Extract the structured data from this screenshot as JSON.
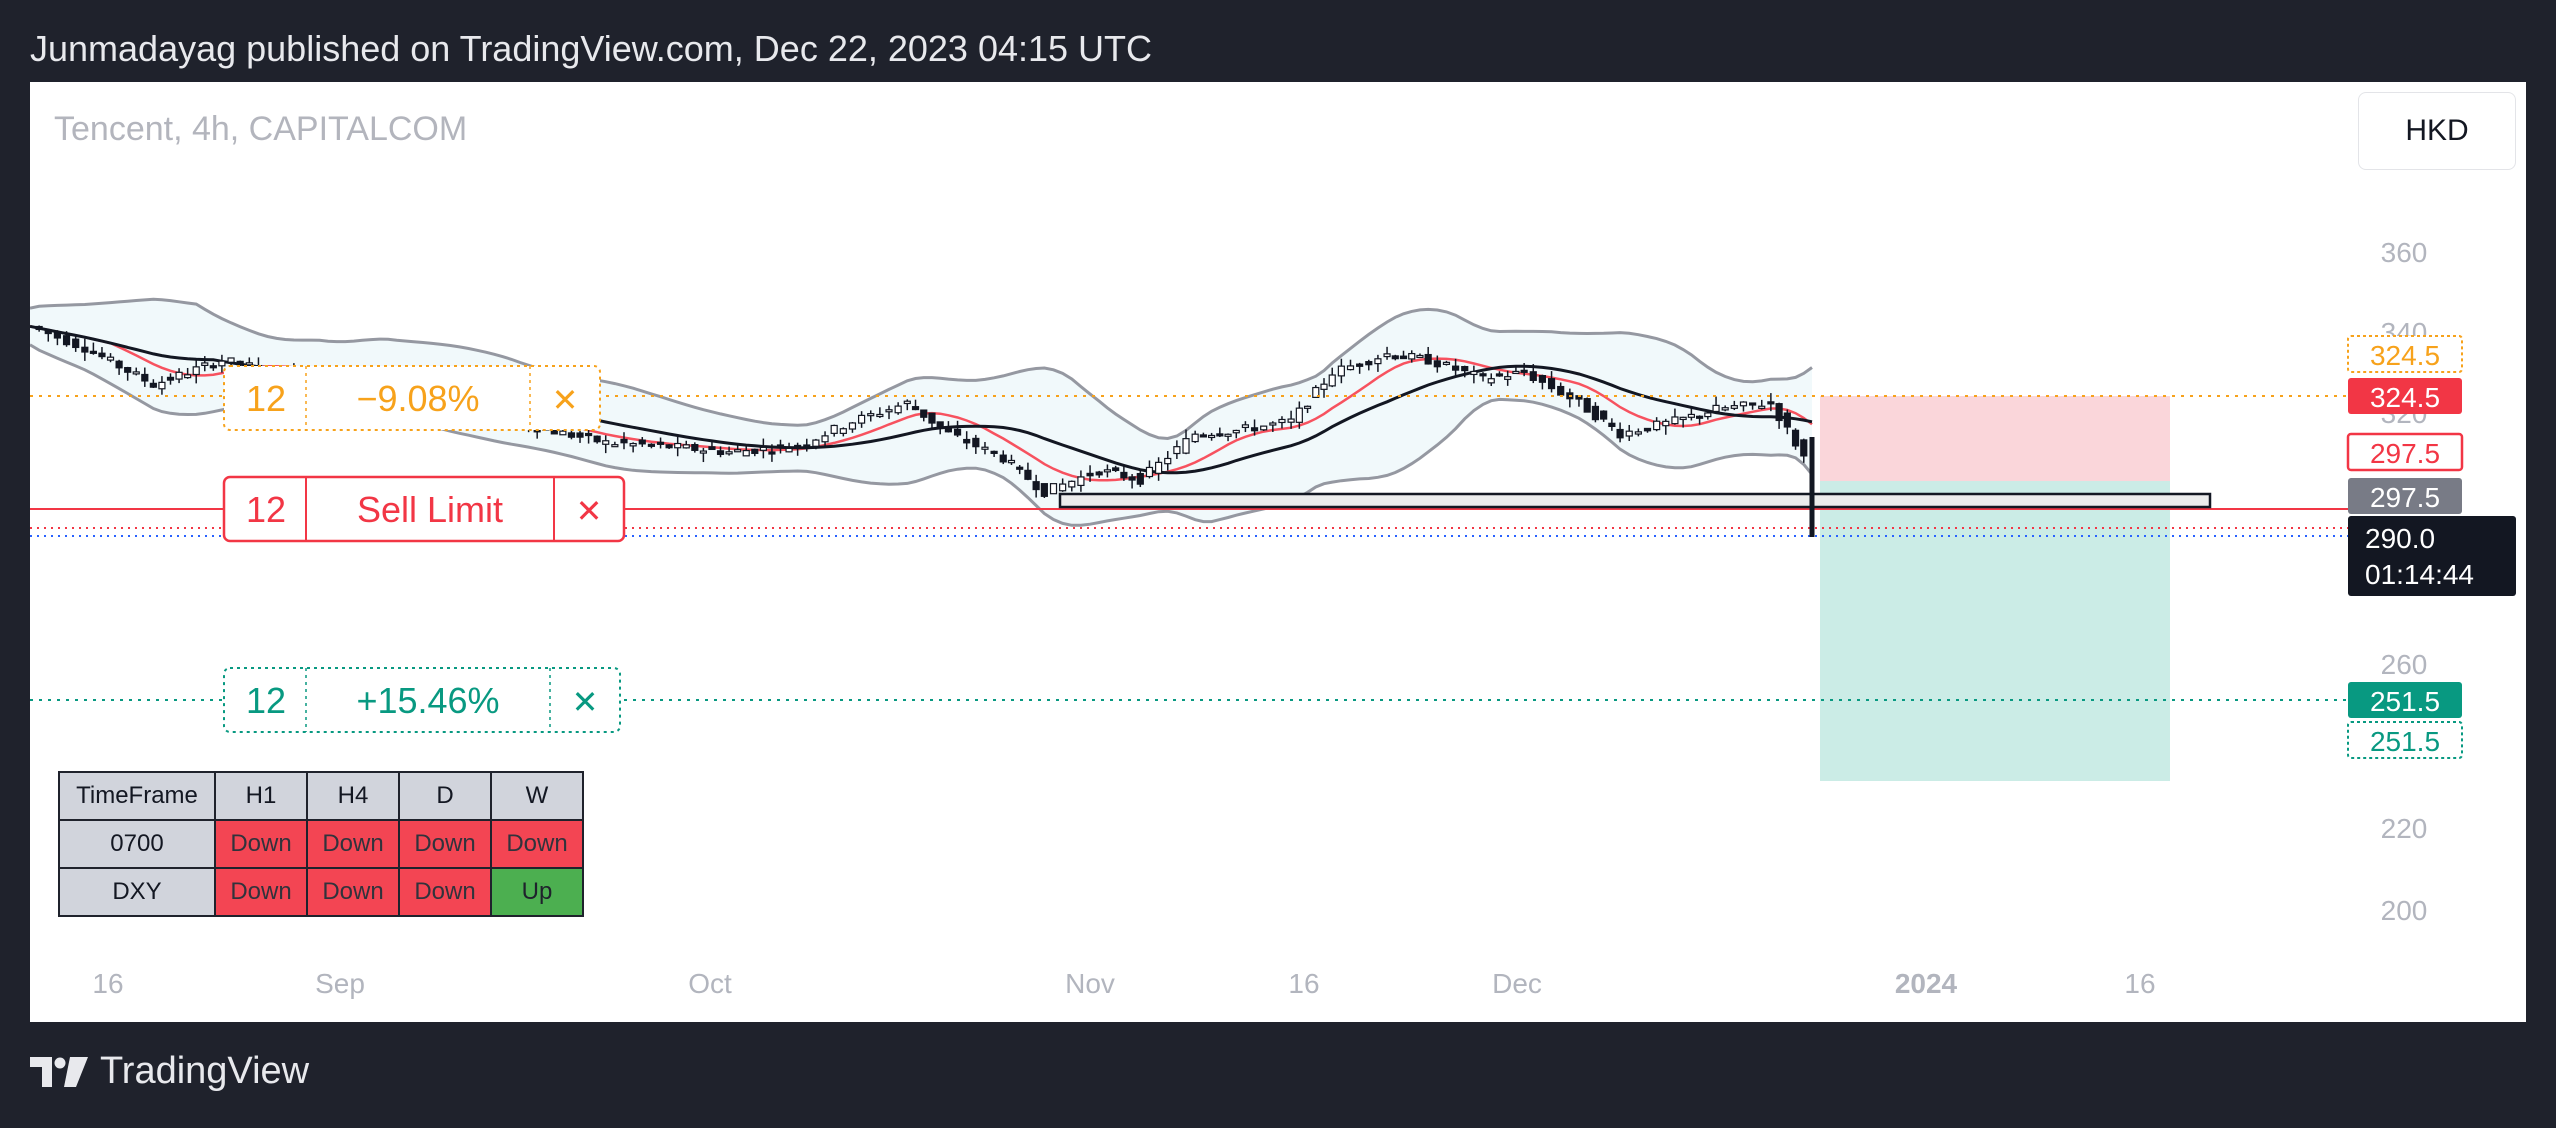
{
  "header": {
    "published": "Junmadayag published on TradingView.com, Dec 22, 2023 04:15 UTC"
  },
  "chart_header": {
    "symbol": "Tencent, 4h, CAPITALCOM",
    "currency": "HKD"
  },
  "order_labels": {
    "stop": {
      "qty": "12",
      "text": "−9.08%",
      "close": "✕",
      "color": "#f7a21b"
    },
    "sell_limit": {
      "qty": "12",
      "text": "Sell Limit",
      "close": "✕",
      "color": "#f23645"
    },
    "target": {
      "qty": "12",
      "text": "+15.46%",
      "close": "✕",
      "color": "#089981"
    }
  },
  "trend_table": {
    "headers": [
      "TimeFrame",
      "H1",
      "H4",
      "D",
      "W"
    ],
    "rows": [
      {
        "name": "0700",
        "cells": [
          "Down",
          "Down",
          "Down",
          "Down"
        ]
      },
      {
        "name": "DXY",
        "cells": [
          "Down",
          "Down",
          "Down",
          "Up"
        ]
      }
    ]
  },
  "chart_data": {
    "type": "candlestick",
    "x_ticks": [
      "16",
      "Sep",
      "Oct",
      "Nov",
      "16",
      "Dec",
      "2024",
      "16"
    ],
    "y_ticks": [
      360.0,
      340.0,
      320.0,
      260.0,
      220.0,
      200.0
    ],
    "price_labels": [
      {
        "value": "324.5",
        "style": "dotted",
        "color": "#f7a21b"
      },
      {
        "value": "324.5",
        "style": "solid",
        "color": "#f23645"
      },
      {
        "value": "297.5",
        "style": "outline",
        "color": "#f23645"
      },
      {
        "value": "297.5",
        "style": "solid",
        "color": "#787b86"
      },
      {
        "value": "290.0",
        "countdown": "01:14:44",
        "style": "solid",
        "color": "#131722"
      },
      {
        "value": "251.5",
        "style": "solid",
        "color": "#089981"
      },
      {
        "value": "251.5",
        "style": "dotted",
        "color": "#089981"
      }
    ],
    "levels": {
      "stop": 324.5,
      "entry": 297.5,
      "last": 290.0,
      "target": 251.5
    },
    "approx_close_path": [
      {
        "date": "2023-08-14",
        "close": 337
      },
      {
        "date": "2023-08-18",
        "close": 330
      },
      {
        "date": "2023-08-23",
        "close": 318
      },
      {
        "date": "2023-08-28",
        "close": 326
      },
      {
        "date": "2023-09-01",
        "close": 322
      },
      {
        "date": "2023-09-06",
        "close": 320
      },
      {
        "date": "2023-09-11",
        "close": 312
      },
      {
        "date": "2023-09-15",
        "close": 310
      },
      {
        "date": "2023-09-20",
        "close": 304
      },
      {
        "date": "2023-09-25",
        "close": 299
      },
      {
        "date": "2023-09-29",
        "close": 298
      },
      {
        "date": "2023-10-04",
        "close": 296
      },
      {
        "date": "2023-10-09",
        "close": 298
      },
      {
        "date": "2023-10-13",
        "close": 306
      },
      {
        "date": "2023-10-17",
        "close": 312
      },
      {
        "date": "2023-10-20",
        "close": 302
      },
      {
        "date": "2023-10-24",
        "close": 294
      },
      {
        "date": "2023-10-27",
        "close": 283
      },
      {
        "date": "2023-10-31",
        "close": 290
      },
      {
        "date": "2023-11-03",
        "close": 287
      },
      {
        "date": "2023-11-07",
        "close": 302
      },
      {
        "date": "2023-11-10",
        "close": 303
      },
      {
        "date": "2023-11-14",
        "close": 306
      },
      {
        "date": "2023-11-17",
        "close": 322
      },
      {
        "date": "2023-11-21",
        "close": 328
      },
      {
        "date": "2023-11-24",
        "close": 326
      },
      {
        "date": "2023-11-28",
        "close": 320
      },
      {
        "date": "2023-12-01",
        "close": 322
      },
      {
        "date": "2023-12-05",
        "close": 312
      },
      {
        "date": "2023-12-08",
        "close": 302
      },
      {
        "date": "2023-12-12",
        "close": 306
      },
      {
        "date": "2023-12-15",
        "close": 310
      },
      {
        "date": "2023-12-19",
        "close": 312
      },
      {
        "date": "2023-12-22",
        "close": 290
      }
    ]
  }
}
